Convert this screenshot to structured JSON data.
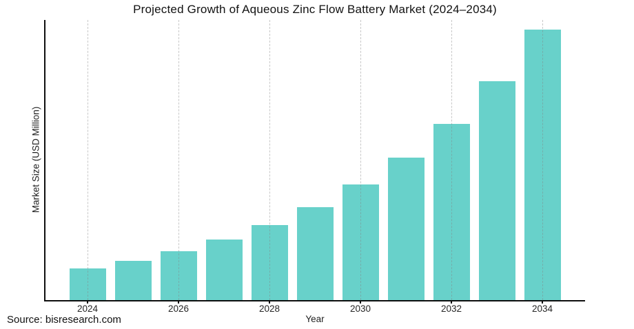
{
  "page": {
    "background": "#ffffff"
  },
  "chart_data": {
    "type": "bar",
    "title": "Projected Growth of Aqueous Zinc Flow Battery Market (2024–2034)",
    "xlabel": "Year",
    "ylabel": "Market Size (USD Million)",
    "categories": [
      2024,
      2025,
      2026,
      2027,
      2028,
      2029,
      2030,
      2031,
      2032,
      2033,
      2034
    ],
    "values": [
      46,
      57,
      71,
      88,
      109,
      135,
      168,
      207,
      256,
      318,
      393
    ],
    "ylim": [
      0,
      407
    ],
    "x_tick_labels": [
      "2024",
      "2026",
      "2028",
      "2030",
      "2032",
      "2034"
    ],
    "legend": "none",
    "grid": {
      "vertical": true,
      "horizontal": false,
      "style": "dashed",
      "at": "even years",
      "drawn_over_bars": true
    },
    "y_tick_labels": [],
    "layout": {
      "values_are": "relative units (no y tick labels shown); growth ≈ 24% CAGR"
    },
    "colors": {
      "bar": "#68d1ca",
      "grid": "#b9b9b9",
      "axis": "#0d0d0d",
      "text": "#1a1a1a"
    }
  },
  "footer": {
    "source": "Source: bisresearch.com"
  }
}
